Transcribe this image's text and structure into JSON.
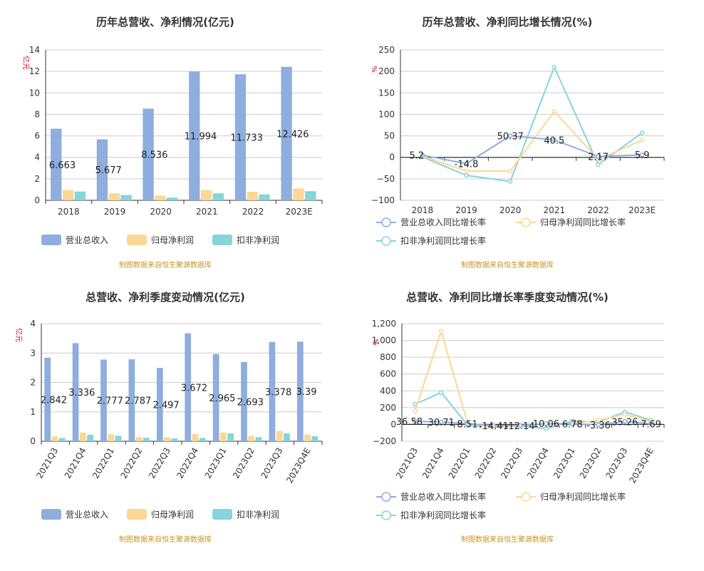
{
  "source_note": "制图数据来自恒生聚源数据库",
  "colors": {
    "revenue": "#8eaedd",
    "net_profit": "#fdd794",
    "deducted_profit": "#85d5da"
  },
  "chart_data": [
    {
      "type": "bar",
      "title": "历年总营收、净利情况(亿元)",
      "unit": "亿元",
      "categories": [
        "2018",
        "2019",
        "2020",
        "2021",
        "2022",
        "2023E"
      ],
      "ylim": [
        0,
        14
      ],
      "yticks": [
        0,
        2,
        4,
        6,
        8,
        10,
        12,
        14
      ],
      "ytick_labels": [
        "0",
        "2",
        "4",
        "6",
        "8",
        "10",
        "12",
        "14"
      ],
      "grid": true,
      "legend_position": "bottom",
      "series": [
        {
          "name": "营业总收入",
          "values": [
            6.663,
            5.677,
            8.536,
            11.994,
            11.733,
            12.426
          ],
          "labels": [
            "6.663",
            "5.677",
            "8.536",
            "11.994",
            "11.733",
            "12.426"
          ]
        },
        {
          "name": "归母净利润",
          "values": [
            0.95,
            0.66,
            0.45,
            0.95,
            0.8,
            1.1
          ]
        },
        {
          "name": "扣非净利润",
          "values": [
            0.82,
            0.5,
            0.25,
            0.65,
            0.55,
            0.85
          ]
        }
      ]
    },
    {
      "type": "line",
      "title": "历年总营收、净利同比增长情况(%)",
      "unit": "%",
      "categories": [
        "2018",
        "2019",
        "2020",
        "2021",
        "2022",
        "2023E"
      ],
      "ylim": [
        -100,
        250
      ],
      "yticks": [
        -100,
        -50,
        0,
        50,
        100,
        150,
        200,
        250
      ],
      "ytick_labels": [
        "−100",
        "−50",
        "0",
        "50",
        "100",
        "150",
        "200",
        "250"
      ],
      "grid": true,
      "legend_position": "bottom",
      "series": [
        {
          "name": "营业总收入同比增长率",
          "values": [
            5.2,
            -14.8,
            50.37,
            40.5,
            2.17,
            5.9
          ],
          "labels": [
            "5.2",
            "-14.8",
            "50.37",
            "40.5",
            "2.17",
            "5.9"
          ]
        },
        {
          "name": "归母净利润同比增长率",
          "values": [
            3,
            -32,
            -32,
            107,
            -5,
            40
          ]
        },
        {
          "name": "扣非净利润同比增长率",
          "values": [
            1,
            -42,
            -56,
            210,
            -17,
            57
          ]
        }
      ]
    },
    {
      "type": "bar",
      "title": "总营收、净利季度变动情况(亿元)",
      "unit": "亿元",
      "categories": [
        "2021Q3",
        "2021Q4",
        "2022Q1",
        "2022Q2",
        "2022Q3",
        "2022Q4",
        "2023Q1",
        "2023Q2",
        "2023Q3",
        "2023Q4E"
      ],
      "ylim": [
        0,
        4
      ],
      "yticks": [
        0,
        1,
        2,
        3,
        4
      ],
      "ytick_labels": [
        "0",
        "1",
        "2",
        "3",
        "4"
      ],
      "grid": true,
      "legend_position": "bottom",
      "series": [
        {
          "name": "营业总收入",
          "values": [
            2.842,
            3.336,
            2.777,
            2.787,
            2.497,
            3.672,
            2.965,
            2.693,
            3.378,
            3.39
          ],
          "labels": [
            "2.842",
            "3.336",
            "2.777",
            "2.787",
            "2.497",
            "3.672",
            "2.965",
            "2.693",
            "3.378",
            "3.39"
          ]
        },
        {
          "name": "归母净利润",
          "values": [
            0.17,
            0.3,
            0.24,
            0.14,
            0.14,
            0.25,
            0.3,
            0.18,
            0.35,
            0.23
          ]
        },
        {
          "name": "扣非净利润",
          "values": [
            0.11,
            0.22,
            0.19,
            0.12,
            0.1,
            0.11,
            0.27,
            0.14,
            0.27,
            0.17
          ]
        }
      ]
    },
    {
      "type": "line",
      "title": "总营收、净利同比增长率季度变动情况(%)",
      "unit": "%",
      "categories": [
        "2021Q3",
        "2021Q4",
        "2022Q1",
        "2022Q2",
        "2022Q3",
        "2022Q4",
        "2023Q1",
        "2023Q2",
        "2023Q3",
        "2023Q4E"
      ],
      "ylim": [
        -200,
        1200
      ],
      "yticks": [
        -200,
        0,
        200,
        400,
        600,
        800,
        1000,
        1200
      ],
      "ytick_labels": [
        "−200",
        "0",
        "200",
        "400",
        "600",
        "800",
        "1,000",
        "1,200"
      ],
      "grid": true,
      "legend_position": "bottom",
      "series": [
        {
          "name": "营业总收入同比增长率",
          "values": [
            36.58,
            30.71,
            8.51,
            -14.41,
            -12.14,
            10.06,
            6.78,
            -3.36,
            35.26,
            7.69
          ],
          "labels": [
            "36.58",
            "30.71",
            "8.51",
            "-14.41",
            "-12.14",
            "10.06",
            "6.78",
            "-3.36",
            "35.26",
            "7.69"
          ]
        },
        {
          "name": "归母净利润同比增长率",
          "values": [
            160,
            1110,
            20,
            -40,
            -10,
            0,
            10,
            50,
            120,
            30
          ]
        },
        {
          "name": "扣非净利润同比增长率",
          "values": [
            240,
            380,
            -5,
            -25,
            -15,
            -50,
            40,
            30,
            150,
            50
          ]
        }
      ]
    }
  ]
}
